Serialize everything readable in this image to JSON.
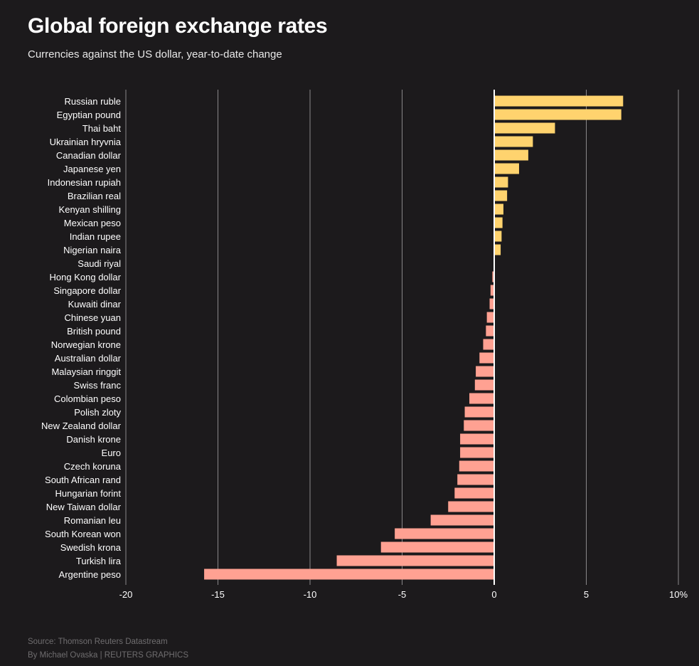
{
  "header": {
    "title": "Global foreign exchange rates",
    "subtitle": "Currencies against the US dollar, year-to-date change"
  },
  "footer": {
    "source": "Source: Thomson Reuters Datastream",
    "byline": "By Michael Ovaska | REUTERS GRAPHICS"
  },
  "colors": {
    "background": "#1c1a1c",
    "positive": "#ffd36e",
    "negative": "#ffa192",
    "gridline": "#8a888a",
    "zeroline": "#ffffff",
    "label": "#ffffff"
  },
  "chart_data": {
    "type": "bar",
    "orientation": "horizontal",
    "title": "Global foreign exchange rates",
    "subtitle": "Currencies against the US dollar, year-to-date change",
    "xlim": [
      -20,
      10
    ],
    "x_ticks": [
      -20,
      -15,
      -10,
      -5,
      0,
      5,
      10
    ],
    "x_tick_labels": [
      "-20",
      "-15",
      "-10",
      "-5",
      "0",
      "5",
      "10%"
    ],
    "grid": true,
    "categories": [
      "Russian ruble",
      "Egyptian pound",
      "Thai baht",
      "Ukrainian hryvnia",
      "Canadian dollar",
      "Japanese yen",
      "Indonesian rupiah",
      "Brazilian real",
      "Kenyan shilling",
      "Mexican peso",
      "Indian rupee",
      "Nigerian naira",
      "Saudi riyal",
      "Hong Kong dollar",
      "Singapore dollar",
      "Kuwaiti dinar",
      "Chinese yuan",
      "British pound",
      "Norwegian krone",
      "Australian dollar",
      "Malaysian ringgit",
      "Swiss franc",
      "Colombian peso",
      "Polish zloty",
      "New Zealand dollar",
      "Danish krone",
      "Euro",
      "Czech koruna",
      "South African rand",
      "Hungarian forint",
      "New Taiwan dollar",
      "Romanian leu",
      "South Korean won",
      "Swedish krona",
      "Turkish lira",
      "Argentine peso"
    ],
    "values": [
      7.0,
      6.9,
      3.3,
      2.1,
      1.85,
      1.35,
      0.75,
      0.7,
      0.5,
      0.45,
      0.4,
      0.35,
      0.0,
      -0.1,
      -0.2,
      -0.25,
      -0.4,
      -0.45,
      -0.6,
      -0.8,
      -1.0,
      -1.05,
      -1.35,
      -1.6,
      -1.65,
      -1.85,
      -1.85,
      -1.9,
      -2.0,
      -2.15,
      -2.5,
      -3.45,
      -5.4,
      -6.15,
      -8.55,
      -15.75
    ]
  }
}
